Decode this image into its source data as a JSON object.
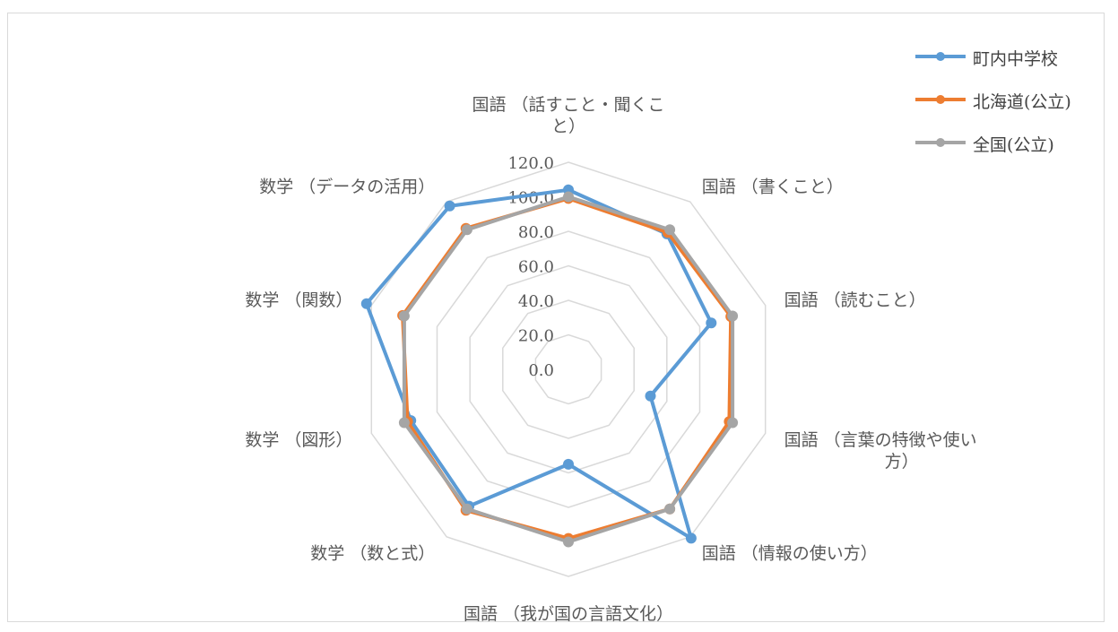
{
  "chart_data": {
    "type": "radar",
    "categories": [
      "国語（話すこと・聞くこと）",
      "国語（書くこと）",
      "国語（読むこと）",
      "国語（言葉の特徴や使い方）",
      "国語（情報の使い方）",
      "国語（我が国の言語文化）",
      "数学（数と式）",
      "数学（図形）",
      "数学（関数）",
      "数学（データの活用）"
    ],
    "category_label_lines": [
      [
        "国語 （話すこと・聞くこ",
        "と）"
      ],
      [
        "国語 （書くこと）"
      ],
      [
        "国語 （読むこと）"
      ],
      [
        "国語 （言葉の特徴や使い",
        "方）"
      ],
      [
        "国語 （情報の使い方）"
      ],
      [
        "国語 （我が国の言語文化）"
      ],
      [
        "数学 （数と式）"
      ],
      [
        "数学 （図形）"
      ],
      [
        "数学 （関数）"
      ],
      [
        "数学 （データの活用）"
      ]
    ],
    "series": [
      {
        "name": "町内中学校",
        "color": "#5b9bd5",
        "values": [
          104,
          97,
          87,
          50,
          121,
          55,
          98,
          96,
          123,
          117
        ]
      },
      {
        "name": "北海道(公立)",
        "color": "#ed7d31",
        "values": [
          99,
          98,
          99,
          98,
          100,
          98,
          101,
          98,
          101,
          101
        ]
      },
      {
        "name": "全国(公立)",
        "color": "#a5a5a5",
        "values": [
          100,
          100,
          100,
          100,
          100,
          100,
          100,
          100,
          100,
          100
        ]
      }
    ],
    "r_ticks": [
      "0.0",
      "20.0",
      "40.0",
      "60.0",
      "80.0",
      "100.0",
      "120.0"
    ],
    "r_range": [
      0,
      120
    ],
    "grid": true,
    "legend_position": "top-right"
  }
}
